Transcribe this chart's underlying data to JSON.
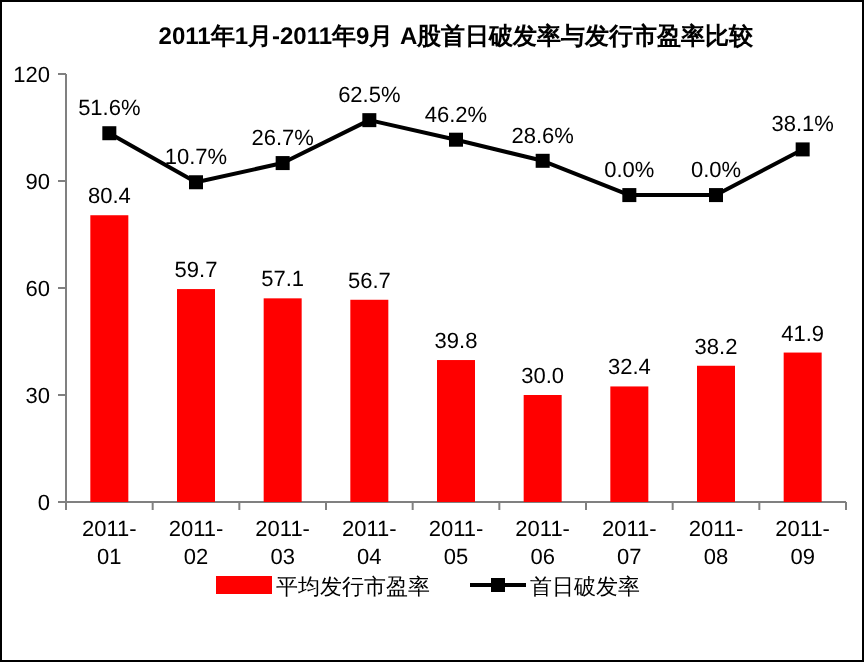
{
  "chart_data": {
    "type": "bar",
    "title": "2011年1月-2011年9月  A股首日破发率与发行市盈率比较",
    "categories": [
      "2011-01",
      "2011-02",
      "2011-03",
      "2011-04",
      "2011-05",
      "2011-06",
      "2011-07",
      "2011-08",
      "2011-09"
    ],
    "series": [
      {
        "name": "平均发行市盈率",
        "color": "#ff0000",
        "values": [
          80.4,
          59.7,
          57.1,
          56.7,
          39.8,
          30.0,
          32.4,
          38.2,
          41.9
        ],
        "value_labels": [
          "80.4",
          "59.7",
          "57.1",
          "56.7",
          "39.8",
          "30.0",
          "32.4",
          "38.2",
          "41.9"
        ]
      },
      {
        "name": "首日破发率",
        "type": "line",
        "axis": "y2",
        "color": "#000000",
        "marker": "square",
        "values": [
          51.6,
          10.7,
          26.7,
          62.5,
          46.2,
          28.6,
          0.0,
          0.0,
          38.1
        ],
        "value_labels": [
          "51.6%",
          "10.7%",
          "26.7%",
          "62.5%",
          "46.2%",
          "28.6%",
          "0.0%",
          "0.0%",
          "38.1%"
        ]
      }
    ],
    "ylim": [
      0,
      120
    ],
    "yticks": [
      0,
      30,
      60,
      90,
      120
    ],
    "y2lim": [
      -256,
      101
    ],
    "grid": false,
    "legend": "bottom"
  }
}
